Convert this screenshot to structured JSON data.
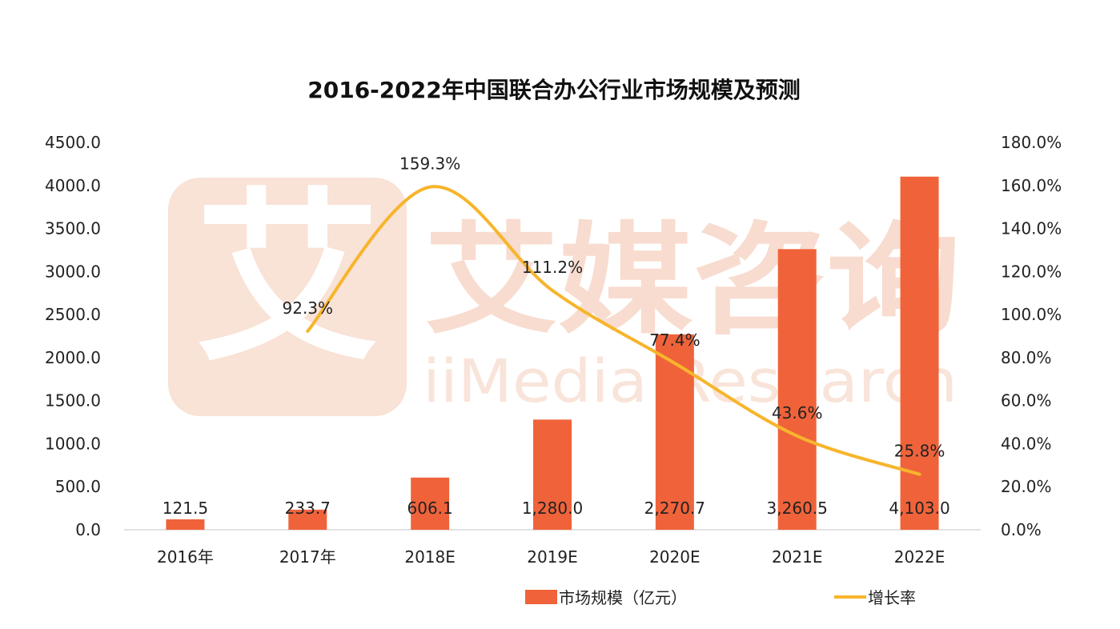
{
  "chart_data": {
    "type": "bar",
    "title": "2016-2022年中国联合办公行业市场规模及预测",
    "categories": [
      "2016年",
      "2017年",
      "2018E",
      "2019E",
      "2020E",
      "2021E",
      "2022E"
    ],
    "series": [
      {
        "name": "市场规模（亿元）",
        "type": "bar",
        "axis": "left",
        "color": "#f0633a",
        "values": [
          121.5,
          233.7,
          606.1,
          1280.0,
          2270.7,
          3260.5,
          4103.0
        ],
        "labels": [
          "121.5",
          "233.7",
          "606.1",
          "1,280.0",
          "2,270.7",
          "3,260.5",
          "4,103.0"
        ]
      },
      {
        "name": "增长率",
        "type": "line",
        "axis": "right",
        "color": "#f7b52c",
        "smooth": true,
        "values": [
          null,
          92.3,
          159.3,
          111.2,
          77.4,
          43.6,
          25.8
        ],
        "labels": [
          "",
          "92.3%",
          "159.3%",
          "111.2%",
          "77.4%",
          "43.6%",
          "25.8%"
        ]
      }
    ],
    "y_left": {
      "min": 0,
      "max": 4500,
      "step": 500,
      "tick_labels": [
        "0.0",
        "500.0",
        "1000.0",
        "1500.0",
        "2000.0",
        "2500.0",
        "3000.0",
        "3500.0",
        "4000.0",
        "4500.0"
      ]
    },
    "y_right": {
      "min": 0,
      "max": 180,
      "step": 20,
      "tick_labels": [
        "0.0%",
        "20.0%",
        "40.0%",
        "60.0%",
        "80.0%",
        "100.0%",
        "120.0%",
        "140.0%",
        "160.0%",
        "180.0%"
      ]
    },
    "grid": false,
    "legend_position": "bottom-center"
  },
  "watermark": {
    "logo_char": "艾",
    "name_cn": "艾媒咨询",
    "name_en": "iiMedia Research"
  },
  "colors": {
    "bar": "#f0633a",
    "line": "#f7b52c",
    "watermark": "#f8dccf"
  }
}
